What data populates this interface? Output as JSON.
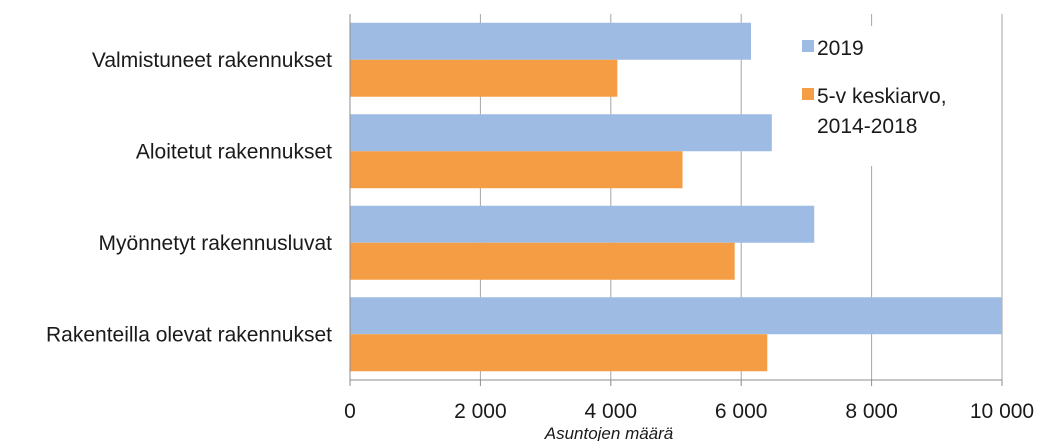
{
  "chart_data": {
    "type": "bar",
    "orientation": "horizontal",
    "categories": [
      "Valmistuneet rakennukset",
      "Aloitetut rakennukset",
      "Myönnetyt rakennusluvat",
      "Rakenteilla olevat rakennukset"
    ],
    "series": [
      {
        "name": "2019",
        "color": "#9dbbe3",
        "values": [
          6150,
          6470,
          7120,
          10000
        ]
      },
      {
        "name": "5-v keskiarvo, 2014-2018",
        "color": "#f59d45",
        "values": [
          4100,
          5100,
          5900,
          6400
        ]
      }
    ],
    "legend_lines": [
      "5-v keskiarvo,",
      "2014-2018"
    ],
    "xlabel": "Asuntojen määrä",
    "xlim": [
      0,
      10000
    ],
    "xticks": [
      0,
      2000,
      4000,
      6000,
      8000,
      10000
    ],
    "xtick_labels": [
      "0",
      "2 000",
      "4 000",
      "6 000",
      "8 000",
      "10 000"
    ],
    "grid": "vertical",
    "legend_position": "top-right"
  }
}
